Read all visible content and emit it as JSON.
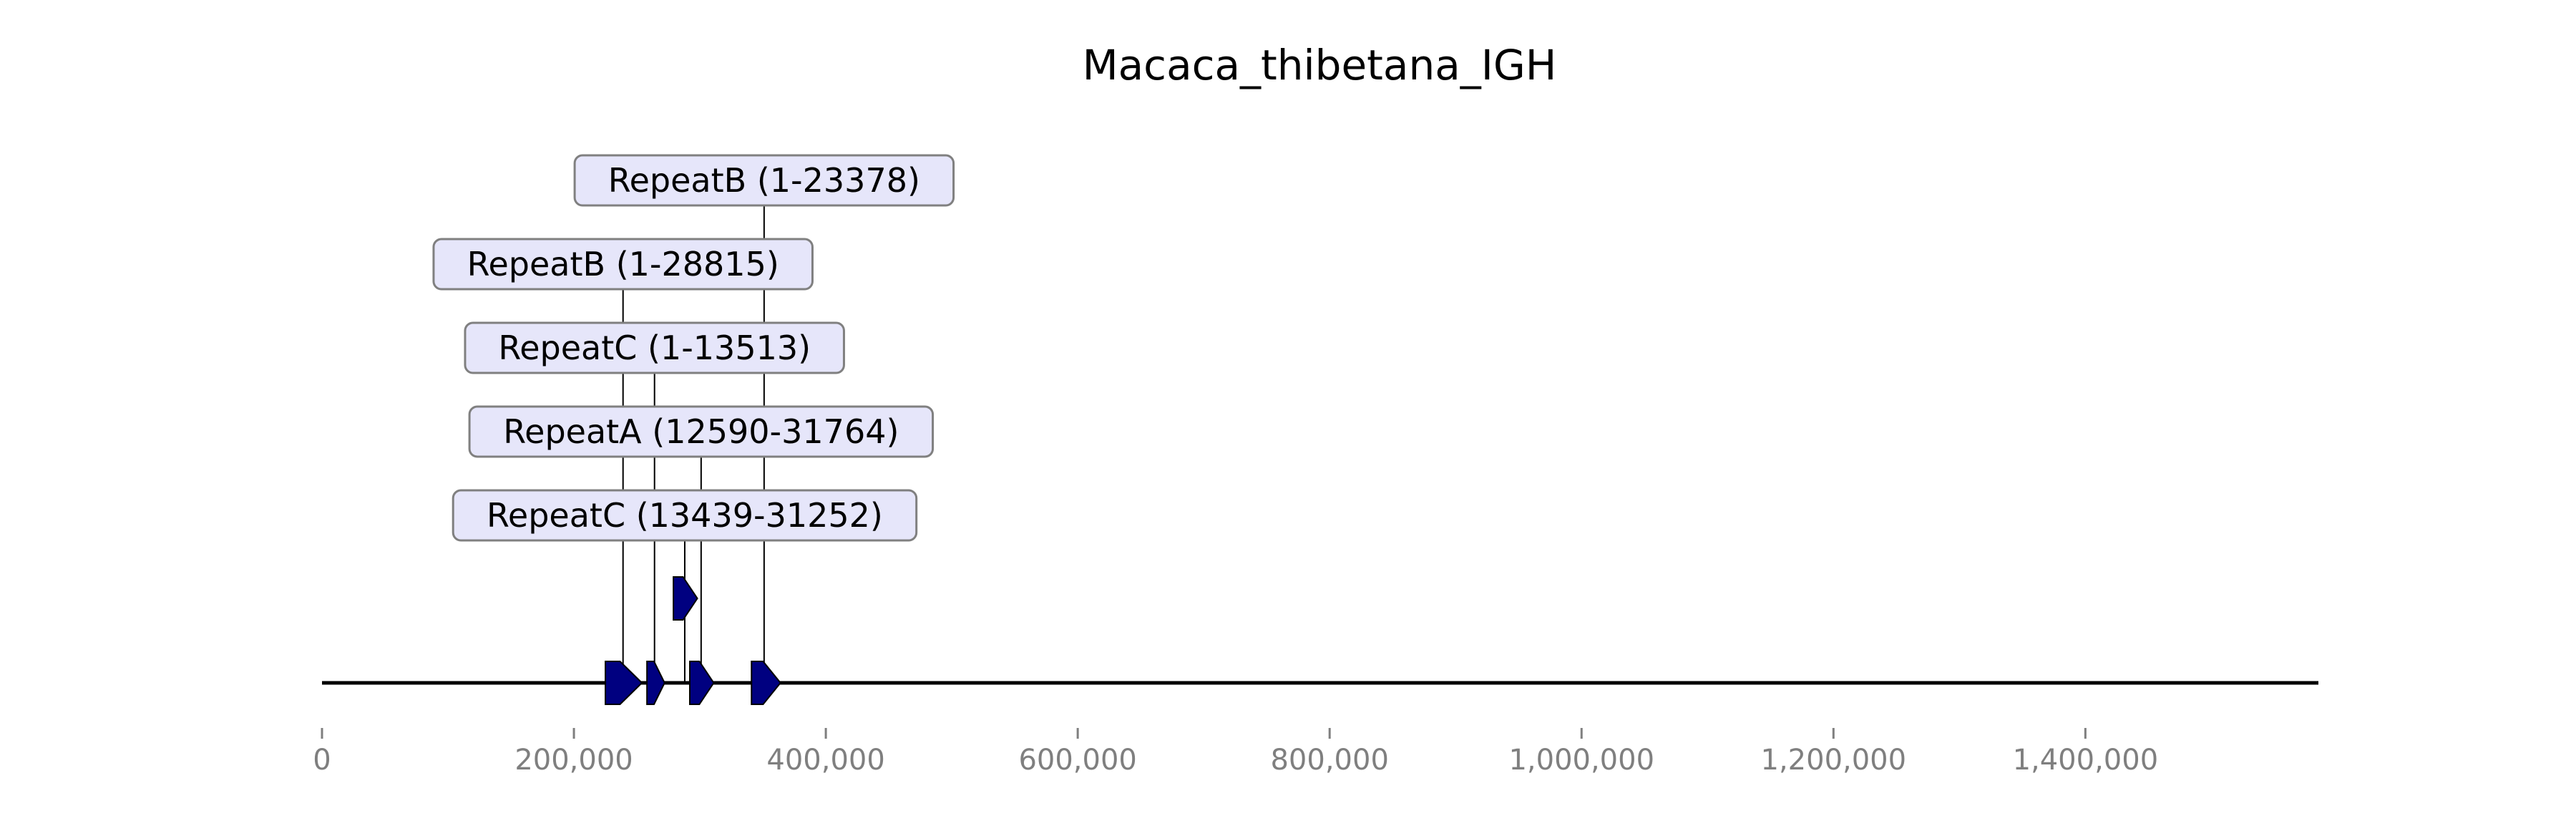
{
  "title": "Macaca_thibetana_IGH",
  "axis": {
    "x_min": 0,
    "x_max": 1585000,
    "ticks": [
      {
        "value": 0,
        "label": "0"
      },
      {
        "value": 200000,
        "label": "200,000"
      },
      {
        "value": 400000,
        "label": "400,000"
      },
      {
        "value": 600000,
        "label": "600,000"
      },
      {
        "value": 800000,
        "label": "800,000"
      },
      {
        "value": 1000000,
        "label": "1,000,000"
      },
      {
        "value": 1200000,
        "label": "1,200,000"
      },
      {
        "value": 1400000,
        "label": "1,400,000"
      }
    ],
    "tick_color": "#7f7f7f"
  },
  "features": [
    {
      "start": 225000,
      "end": 254000,
      "level": 0
    },
    {
      "start": 258000,
      "end": 272000,
      "level": 0
    },
    {
      "start": 292000,
      "end": 311000,
      "level": 0
    },
    {
      "start": 341000,
      "end": 364000,
      "level": 0
    },
    {
      "start": 279000,
      "end": 298000,
      "level": 1
    }
  ],
  "labels": [
    {
      "text": "RepeatB (1-23378)",
      "anchor": 351000,
      "center": 351000,
      "row": 0
    },
    {
      "text": "RepeatB (1-28815)",
      "anchor": 239000,
      "center": 239000,
      "row": 1
    },
    {
      "text": "RepeatC (1-13513)",
      "anchor": 264000,
      "center": 264000,
      "row": 2
    },
    {
      "text": "RepeatA (12590-31764)",
      "anchor": 301000,
      "center": 301000,
      "row": 3
    },
    {
      "text": "RepeatC (13439-31252)",
      "anchor": 288000,
      "center": 288000,
      "row": 4
    }
  ],
  "colors": {
    "feature_fill": "#000080",
    "feature_stroke": "#000000",
    "box_fill": "#e6e6fa",
    "box_stroke": "#808080",
    "baseline": "#000000"
  }
}
